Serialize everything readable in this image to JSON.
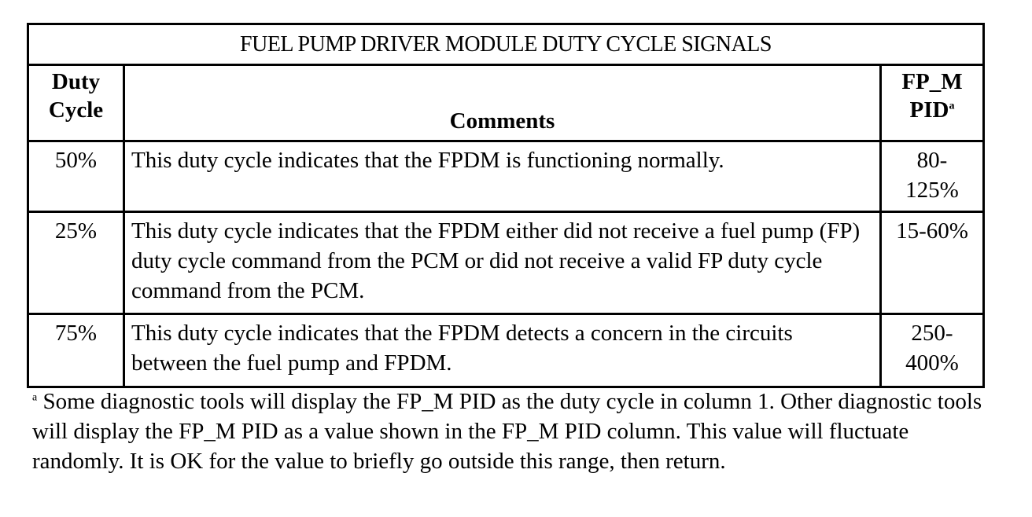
{
  "table": {
    "title": "FUEL PUMP DRIVER MODULE DUTY CYCLE SIGNALS",
    "headers": {
      "duty_cycle_line1": "Duty",
      "duty_cycle_line2": "Cycle",
      "comments": "Comments",
      "pid_line1": "FP_M",
      "pid_line2": "PID",
      "pid_footnote_mark": "a"
    },
    "rows": [
      {
        "duty": "50%",
        "comment": "This duty cycle indicates that the FPDM is functioning normally.",
        "pid": "80-125%"
      },
      {
        "duty": "25%",
        "comment": "This duty cycle indicates that the FPDM either did not receive a fuel pump (FP) duty cycle command from the PCM or did not receive a valid FP duty cycle command from the PCM.",
        "pid": "15-60%"
      },
      {
        "duty": "75%",
        "comment": "This duty cycle indicates that the FPDM detects a concern in the circuits between the fuel pump and FPDM.",
        "pid": "250-400%"
      }
    ]
  },
  "footnote": {
    "mark": "a",
    "text": " Some diagnostic tools will display the FP_M PID as the duty cycle in column 1. Other diagnostic tools will display the FP_M PID as a value shown in the FP_M PID column. This value will fluctuate randomly. It is OK for the value to briefly go outside this range, then return."
  }
}
